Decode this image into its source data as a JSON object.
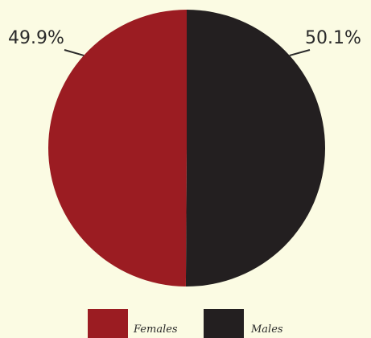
{
  "chart_data": {
    "type": "pie",
    "slices": [
      {
        "label": "Females",
        "value": 49.9,
        "value_label": "49.9%",
        "color": "#9b1c22"
      },
      {
        "label": "Males",
        "value": 50.1,
        "value_label": "50.1%",
        "color": "#231f20"
      }
    ],
    "legend_position": "bottom",
    "background": "#fbfbe3"
  }
}
